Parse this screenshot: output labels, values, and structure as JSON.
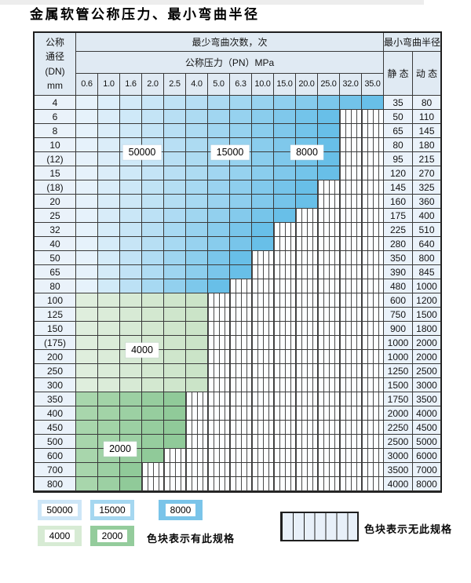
{
  "title": "金属软管公称压力、最小弯曲半径",
  "table": {
    "header": {
      "dn_lines": [
        "公称",
        "通径",
        "(DN)",
        "mm"
      ],
      "bend_cycles": "最少弯曲次数，次",
      "pressure": "公称压力（PN）MPa",
      "pressure_values": [
        "0.6",
        "1.0",
        "1.6",
        "2.0",
        "2.5",
        "4.0",
        "5.0",
        "6.3",
        "10.0",
        "15.0",
        "20.0",
        "25.0",
        "32.0",
        "35.0"
      ],
      "radius": "最小弯曲半径",
      "static": "静 态",
      "dynamic": "动 态"
    },
    "rows": [
      {
        "dn": "4",
        "band": "blue",
        "colored": 14,
        "static": "35",
        "dynamic": "80"
      },
      {
        "dn": "6",
        "band": "blue",
        "colored": 12,
        "static": "50",
        "dynamic": "110"
      },
      {
        "dn": "8",
        "band": "blue",
        "colored": 12,
        "static": "65",
        "dynamic": "145"
      },
      {
        "dn": "10",
        "band": "blue",
        "colored": 12,
        "static": "80",
        "dynamic": "180"
      },
      {
        "dn": "(12)",
        "band": "blue",
        "colored": 12,
        "static": "95",
        "dynamic": "215"
      },
      {
        "dn": "15",
        "band": "blue",
        "colored": 12,
        "static": "120",
        "dynamic": "270"
      },
      {
        "dn": "(18)",
        "band": "blue",
        "colored": 11,
        "static": "145",
        "dynamic": "325"
      },
      {
        "dn": "20",
        "band": "blue",
        "colored": 11,
        "static": "160",
        "dynamic": "360"
      },
      {
        "dn": "25",
        "band": "blue",
        "colored": 10,
        "static": "175",
        "dynamic": "400"
      },
      {
        "dn": "32",
        "band": "blue",
        "colored": 9,
        "static": "225",
        "dynamic": "510"
      },
      {
        "dn": "40",
        "band": "blue",
        "colored": 9,
        "static": "280",
        "dynamic": "640"
      },
      {
        "dn": "50",
        "band": "blue",
        "colored": 8,
        "static": "350",
        "dynamic": "800"
      },
      {
        "dn": "65",
        "band": "blue",
        "colored": 8,
        "static": "390",
        "dynamic": "845"
      },
      {
        "dn": "80",
        "band": "blue",
        "colored": 7,
        "static": "480",
        "dynamic": "1000"
      },
      {
        "dn": "100",
        "band": "green4000",
        "colored": 6,
        "static": "600",
        "dynamic": "1200"
      },
      {
        "dn": "125",
        "band": "green4000",
        "colored": 6,
        "static": "750",
        "dynamic": "1500"
      },
      {
        "dn": "150",
        "band": "green4000",
        "colored": 6,
        "static": "900",
        "dynamic": "1800"
      },
      {
        "dn": "(175)",
        "band": "green4000",
        "colored": 6,
        "static": "1000",
        "dynamic": "2000"
      },
      {
        "dn": "200",
        "band": "green4000",
        "colored": 6,
        "static": "1000",
        "dynamic": "2000"
      },
      {
        "dn": "250",
        "band": "green4000",
        "colored": 6,
        "static": "1250",
        "dynamic": "2500"
      },
      {
        "dn": "300",
        "band": "green4000",
        "colored": 6,
        "static": "1500",
        "dynamic": "3000"
      },
      {
        "dn": "350",
        "band": "green2000",
        "colored": 5,
        "static": "1750",
        "dynamic": "3500"
      },
      {
        "dn": "400",
        "band": "green2000",
        "colored": 5,
        "static": "2000",
        "dynamic": "4000"
      },
      {
        "dn": "450",
        "band": "green2000",
        "colored": 5,
        "static": "2250",
        "dynamic": "4500"
      },
      {
        "dn": "500",
        "band": "green2000",
        "colored": 5,
        "static": "2500",
        "dynamic": "5000"
      },
      {
        "dn": "600",
        "band": "green2000",
        "colored": 4,
        "static": "3000",
        "dynamic": "6000"
      },
      {
        "dn": "700",
        "band": "green2000",
        "colored": 3,
        "static": "3500",
        "dynamic": "7000"
      },
      {
        "dn": "800",
        "band": "green2000",
        "colored": 3,
        "static": "4000",
        "dynamic": "8000"
      }
    ]
  },
  "overlay_labels": [
    {
      "text": "50000",
      "col": 3,
      "row": 4
    },
    {
      "text": "15000",
      "col": 7,
      "row": 4
    },
    {
      "text": "8000",
      "col": 10.5,
      "row": 4
    },
    {
      "text": "4000",
      "col": 3,
      "row": 18
    },
    {
      "text": "2000",
      "col": 2,
      "row": 25
    }
  ],
  "legend": {
    "swatches_row1": [
      {
        "label": "50000",
        "color": "#cde6f7"
      },
      {
        "label": "15000",
        "color": "#a5d7f0"
      },
      {
        "label": "8000",
        "color": "#7ac4e9"
      }
    ],
    "swatches_row2": [
      {
        "label": "4000",
        "color": "#d7ebd4"
      },
      {
        "label": "2000",
        "color": "#94cc9c"
      }
    ],
    "has_spec_note": "色块表示有此规格",
    "no_spec_note": "色块表示无此规格"
  },
  "colors": {
    "blue_light": "#e6f2fb",
    "blue_dark": "#68bfe8",
    "green_4000_light": "#dfeedd",
    "green_4000_dark": "#cbe4c8",
    "green_2000_light": "#a8d6ac",
    "green_2000_dark": "#90ca99",
    "header_bg": "#e0eaf3",
    "side_cell_bg": "#eaf2fa",
    "grid_line": "#3a3a3a",
    "hatch_bg": "#fcfeff",
    "legend_hatch_bg": "#e8f0f9"
  }
}
